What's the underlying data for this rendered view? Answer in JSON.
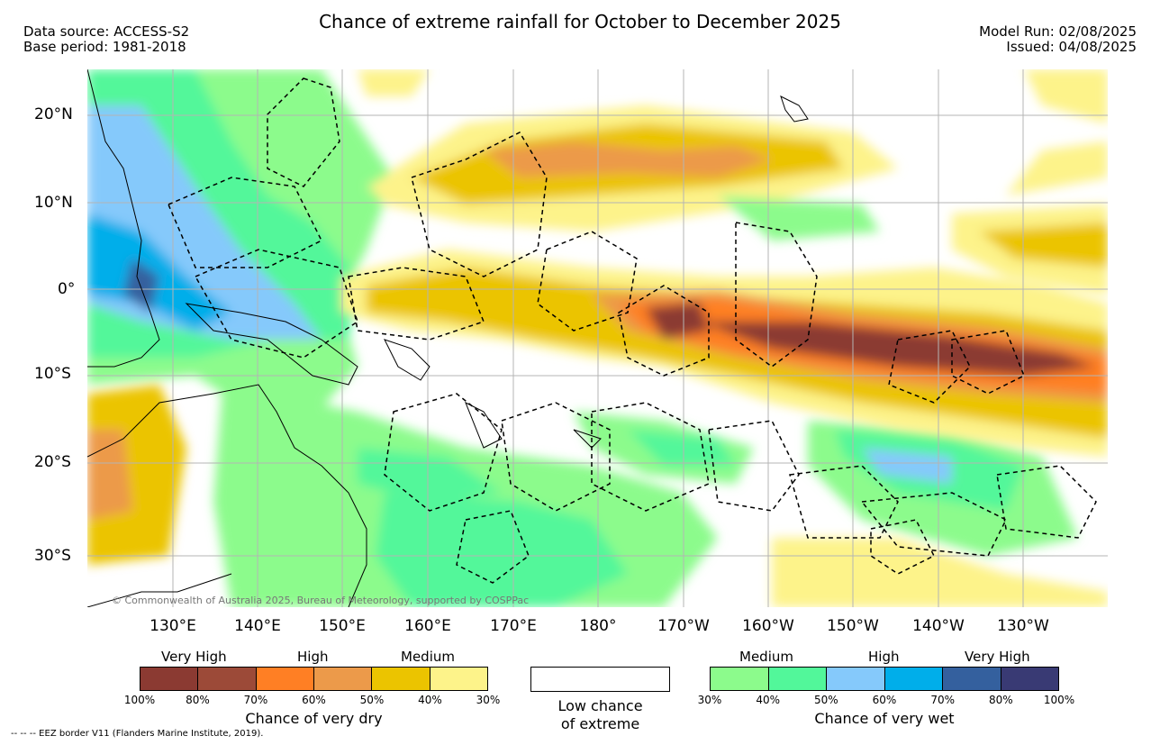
{
  "header": {
    "title": "Chance of extreme rainfall for October to December 2025",
    "data_source": "Data source: ACCESS-S2",
    "base_period": "Base period: 1981-2018",
    "model_run": "Model Run: 02/08/2025",
    "issued": "Issued: 04/08/2025"
  },
  "map": {
    "lat_labels": [
      "20°N",
      "10°N",
      "0°",
      "10°S",
      "20°S",
      "30°S"
    ],
    "lon_labels": [
      "130°E",
      "140°E",
      "150°E",
      "160°E",
      "170°E",
      "180°",
      "170°W",
      "160°W",
      "150°W",
      "140°W",
      "130°W"
    ],
    "copyright": "© Commonwealth of Australia 2025, Bureau of Meteorology, supported by COSPPac"
  },
  "legend": {
    "dry": {
      "levels": [
        "Very High",
        "High",
        "Medium"
      ],
      "colors": [
        "#8b3a32",
        "#9c4a38",
        "#ff7f24",
        "#ec9a4a",
        "#ebc400",
        "#fdf38a"
      ],
      "ticks": [
        "100%",
        "80%",
        "70%",
        "60%",
        "50%",
        "40%",
        "30%"
      ],
      "caption": "Chance of very dry"
    },
    "low": {
      "line1": "Low chance",
      "line2": "of extreme"
    },
    "wet": {
      "levels": [
        "Medium",
        "High",
        "Very High"
      ],
      "colors": [
        "#8cfb8c",
        "#52f79a",
        "#85c9fb",
        "#00aeea",
        "#34609e",
        "#393a74"
      ],
      "ticks": [
        "30%",
        "40%",
        "50%",
        "60%",
        "70%",
        "80%",
        "100%"
      ],
      "caption": "Chance of very wet"
    },
    "eez_note": "-- -- -- EEZ border V11 (Flanders Marine Institute, 2019)."
  }
}
